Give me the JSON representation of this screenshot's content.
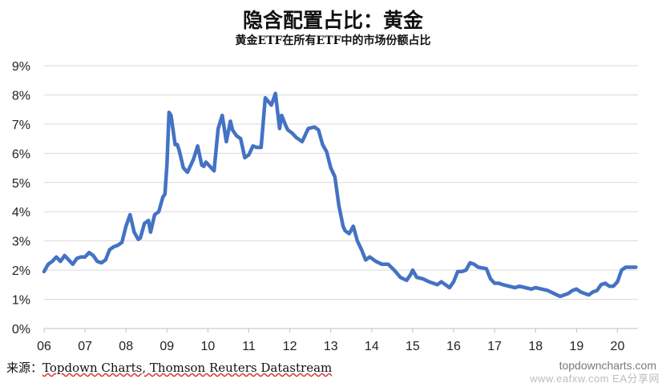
{
  "title": "隐含配置占比：黄金",
  "subtitle": "黄金ETF在所有ETF中的市场份额占比",
  "source_label": "来源：",
  "source_text": "Topdown Charts, Thomson Reuters Datastream",
  "brand": "topdowncharts.com",
  "watermark": "www.eafxw.com  EA分享网",
  "colors": {
    "line": "#4472C4",
    "grid": "#d9d9d9",
    "axis_text": "#222222"
  },
  "chart_data": {
    "type": "line",
    "title": "隐含配置占比：黄金",
    "subtitle": "黄金ETF在所有ETF中的市场份额占比",
    "xlabel": "",
    "ylabel": "",
    "x_ticks": [
      "06",
      "07",
      "08",
      "09",
      "10",
      "11",
      "12",
      "13",
      "14",
      "15",
      "16",
      "17",
      "18",
      "19",
      "20"
    ],
    "y_ticks": [
      "0%",
      "1%",
      "2%",
      "3%",
      "4%",
      "5%",
      "6%",
      "7%",
      "8%",
      "9%"
    ],
    "xlim": [
      2006,
      2020.5
    ],
    "ylim": [
      0,
      9
    ],
    "grid": true,
    "series": [
      {
        "name": "",
        "x": [
          2006.0,
          2006.1,
          2006.2,
          2006.3,
          2006.4,
          2006.5,
          2006.6,
          2006.7,
          2006.8,
          2006.9,
          2007.0,
          2007.1,
          2007.2,
          2007.3,
          2007.4,
          2007.5,
          2007.6,
          2007.7,
          2007.8,
          2007.9,
          2008.0,
          2008.1,
          2008.2,
          2008.3,
          2008.35,
          2008.45,
          2008.55,
          2008.6,
          2008.7,
          2008.8,
          2008.9,
          2008.95,
          2009.0,
          2009.05,
          2009.1,
          2009.2,
          2009.25,
          2009.3,
          2009.4,
          2009.5,
          2009.55,
          2009.65,
          2009.75,
          2009.85,
          2009.9,
          2009.95,
          2010.05,
          2010.15,
          2010.25,
          2010.35,
          2010.45,
          2010.55,
          2010.6,
          2010.7,
          2010.8,
          2010.9,
          2011.0,
          2011.1,
          2011.2,
          2011.3,
          2011.4,
          2011.55,
          2011.65,
          2011.75,
          2011.8,
          2011.9,
          2011.95,
          2012.05,
          2012.15,
          2012.3,
          2012.45,
          2012.6,
          2012.7,
          2012.8,
          2012.9,
          2013.0,
          2013.1,
          2013.2,
          2013.3,
          2013.35,
          2013.45,
          2013.55,
          2013.65,
          2013.75,
          2013.85,
          2013.95,
          2014.1,
          2014.25,
          2014.4,
          2014.55,
          2014.7,
          2014.85,
          2014.95,
          2015.0,
          2015.1,
          2015.25,
          2015.4,
          2015.5,
          2015.6,
          2015.7,
          2015.8,
          2015.9,
          2016.0,
          2016.1,
          2016.2,
          2016.3,
          2016.4,
          2016.5,
          2016.6,
          2016.8,
          2016.9,
          2017.0,
          2017.1,
          2017.2,
          2017.35,
          2017.5,
          2017.6,
          2017.75,
          2017.9,
          2018.0,
          2018.15,
          2018.3,
          2018.45,
          2018.6,
          2018.7,
          2018.8,
          2018.9,
          2019.0,
          2019.1,
          2019.2,
          2019.3,
          2019.4,
          2019.5,
          2019.6,
          2019.7,
          2019.8,
          2019.9,
          2020.0,
          2020.1,
          2020.2,
          2020.3,
          2020.45
        ],
        "values": [
          1.95,
          2.2,
          2.3,
          2.45,
          2.3,
          2.5,
          2.35,
          2.2,
          2.4,
          2.45,
          2.45,
          2.6,
          2.5,
          2.3,
          2.25,
          2.35,
          2.7,
          2.8,
          2.85,
          2.95,
          3.5,
          3.9,
          3.3,
          3.05,
          3.1,
          3.6,
          3.7,
          3.3,
          3.9,
          4.0,
          4.5,
          4.6,
          5.6,
          7.4,
          7.3,
          6.3,
          6.3,
          6.1,
          5.5,
          5.35,
          5.5,
          5.8,
          6.25,
          5.6,
          5.55,
          5.7,
          5.55,
          5.4,
          6.85,
          7.3,
          6.4,
          7.1,
          6.8,
          6.6,
          6.5,
          5.85,
          5.95,
          6.25,
          6.2,
          6.2,
          7.9,
          7.65,
          8.05,
          6.85,
          7.3,
          6.95,
          6.8,
          6.7,
          6.55,
          6.4,
          6.85,
          6.9,
          6.8,
          6.3,
          6.05,
          5.5,
          5.2,
          4.2,
          3.5,
          3.35,
          3.25,
          3.5,
          3.0,
          2.7,
          2.35,
          2.45,
          2.3,
          2.2,
          2.2,
          2.0,
          1.75,
          1.65,
          1.85,
          2.0,
          1.75,
          1.7,
          1.6,
          1.55,
          1.5,
          1.6,
          1.5,
          1.4,
          1.6,
          1.95,
          1.95,
          2.0,
          2.25,
          2.2,
          2.1,
          2.05,
          1.7,
          1.55,
          1.55,
          1.5,
          1.45,
          1.4,
          1.45,
          1.4,
          1.35,
          1.4,
          1.35,
          1.3,
          1.2,
          1.1,
          1.15,
          1.2,
          1.3,
          1.35,
          1.25,
          1.2,
          1.15,
          1.25,
          1.3,
          1.5,
          1.55,
          1.45,
          1.45,
          1.6,
          2.0,
          2.1,
          2.1,
          2.1
        ]
      }
    ]
  }
}
